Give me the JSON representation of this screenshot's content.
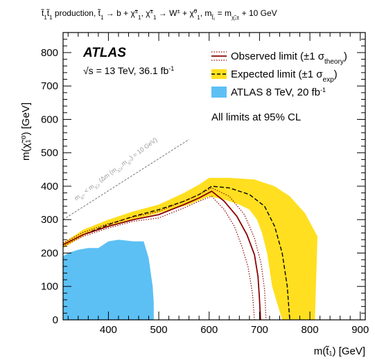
{
  "chart_data": {
    "type": "area",
    "title": "t̃₁t̃₁ production, t̃₁ → b + χ̃₁±, χ̃₁± → W± + χ̃₁⁰, m_χ̃₁± = m_t̃₁ − 10 GeV",
    "title_parts": {
      "lead": "t̃",
      "lead_sub": "1",
      "lead2": "t̃",
      "lead2_sub": "1",
      "production": " production, ",
      "decay1": "t̃",
      "decay1_sub": "1",
      "decay1_rest": " → b + χ̃",
      "decay1_chi_sup": "±",
      "decay1_chi_sub": "1",
      "sep": ", ",
      "decay2": "χ̃",
      "decay2_sup": "±",
      "decay2_sub": "1",
      "decay2_rest": " → W",
      "decay2_w_sup": "±",
      "decay2_plus": " + χ̃",
      "decay2_chi0_sup": "0",
      "decay2_chi0_sub": "1",
      "mass_rel": ", m",
      "mass_sub1": "t̃₁",
      "mass_eq": " = m",
      "mass_sub2": "χ̃₁±",
      "mass_tail": " + 10 GeV"
    },
    "xlabel": "m(t̃₁) [GeV]",
    "ylabel": "m(χ̃₁⁰) [GeV]",
    "xlim": [
      310,
      910
    ],
    "ylim": [
      0,
      860
    ],
    "x_ticks": [
      400,
      500,
      600,
      700,
      800,
      900
    ],
    "y_ticks": [
      0,
      100,
      200,
      300,
      400,
      500,
      600,
      700,
      800
    ],
    "grid": false,
    "legend_position": "top-right",
    "annotations": {
      "experiment": "ATLAS",
      "energy": "√s = 13 TeV, 36.1 fb",
      "energy_sup": "-1",
      "cl_note": "All limits at 95% CL",
      "diag_label": "m_χ̃₁⁰ < m_χ̃₁± (Δm (m_χ̃₁±, m_χ̃₁⁰) = 10 GeV)"
    },
    "diag_label_parts": {
      "a": "m",
      "a_sub": "χ̃₁⁰",
      "b": " < m",
      "b_sub": "χ̃₁±",
      "c": " (Δm (m",
      "c_sub": "χ̃₁±",
      "d": ",m",
      "d_sub": "χ̃₁⁰",
      "e": ") = 10 GeV)"
    },
    "legend": [
      {
        "text": "Observed limit (±1 σ",
        "sub": "theory",
        "tail": ")",
        "style": "observed"
      },
      {
        "text": "Expected limit (±1 σ",
        "sub": "exp",
        "tail": ")",
        "style": "expected"
      },
      {
        "text": "ATLAS 8 TeV, 20 fb",
        "sup": "-1",
        "tail": "",
        "style": "run1"
      }
    ],
    "series": [
      {
        "name": "Expected limit ±1σ_exp band",
        "color": "#ffdf20",
        "x": [
          310,
          350,
          400,
          450,
          500,
          550,
          580,
          600,
          640,
          690,
          730,
          760,
          790,
          815,
          810,
          775,
          745,
          725,
          715,
          705,
          695,
          680,
          660,
          630,
          600,
          560,
          500,
          450,
          400,
          360,
          310
        ],
        "y": [
          230,
          270,
          300,
          325,
          345,
          380,
          405,
          425,
          425,
          420,
          400,
          370,
          320,
          250,
          0,
          0,
          0,
          100,
          200,
          260,
          300,
          330,
          345,
          360,
          370,
          345,
          320,
          300,
          280,
          260,
          215
        ]
      },
      {
        "name": "ATLAS 8 TeV, 20 fb-1",
        "color": "#5cc0f4",
        "x": [
          310,
          320,
          340,
          360,
          380,
          400,
          420,
          450,
          470,
          480,
          485,
          488,
          490,
          490,
          310
        ],
        "y": [
          190,
          200,
          210,
          215,
          215,
          235,
          240,
          235,
          235,
          185,
          130,
          100,
          50,
          0,
          0
        ]
      },
      {
        "name": "Expected limit",
        "color": "#000000",
        "style": "dashed",
        "x": [
          310,
          350,
          400,
          450,
          500,
          550,
          580,
          605,
          640,
          680,
          710,
          730,
          745,
          755,
          760
        ],
        "y": [
          225,
          255,
          285,
          310,
          330,
          355,
          375,
          400,
          395,
          375,
          340,
          280,
          200,
          100,
          0
        ]
      },
      {
        "name": "Observed limit",
        "color": "#8b0000",
        "style": "solid",
        "x": [
          310,
          350,
          400,
          450,
          500,
          550,
          580,
          605,
          630,
          655,
          675,
          690,
          697,
          700,
          702
        ],
        "y": [
          225,
          255,
          280,
          300,
          315,
          345,
          365,
          385,
          355,
          310,
          255,
          195,
          130,
          60,
          0
        ]
      },
      {
        "name": "Observed limit +1σ_theory",
        "color": "#8b0000",
        "style": "dotted",
        "x": [
          310,
          350,
          400,
          450,
          500,
          550,
          580,
          605,
          640,
          670,
          690,
          703,
          710,
          713
        ],
        "y": [
          230,
          262,
          288,
          308,
          325,
          355,
          375,
          395,
          370,
          315,
          245,
          170,
          90,
          0
        ]
      },
      {
        "name": "Observed limit -1σ_theory",
        "color": "#8b0000",
        "style": "dotted",
        "x": [
          310,
          350,
          400,
          450,
          500,
          550,
          580,
          605,
          630,
          650,
          665,
          677,
          686,
          690
        ],
        "y": [
          220,
          250,
          275,
          295,
          305,
          335,
          355,
          370,
          330,
          280,
          220,
          160,
          80,
          0
        ]
      },
      {
        "name": "Kinematic boundary",
        "color": "#888888",
        "style": "dashed",
        "x": [
          310,
          560
        ],
        "y": [
          300,
          540
        ]
      }
    ]
  }
}
